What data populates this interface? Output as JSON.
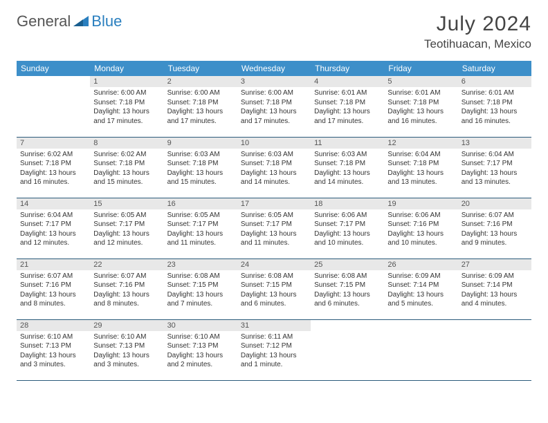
{
  "brand": {
    "part1": "General",
    "part2": "Blue"
  },
  "title": "July 2024",
  "location": "Teotihuacan, Mexico",
  "colors": {
    "header_bg": "#3d8fc9",
    "header_text": "#ffffff",
    "daynum_bg": "#e8e8e8",
    "cell_border": "#2a5a7a",
    "brand_blue": "#2a7fbf",
    "brand_gray": "#555555",
    "page_bg": "#ffffff",
    "text": "#333333"
  },
  "typography": {
    "title_fontsize": 30,
    "location_fontsize": 17,
    "weekday_fontsize": 12,
    "daynum_fontsize": 11,
    "cell_fontsize": 10
  },
  "weekdays": [
    "Sunday",
    "Monday",
    "Tuesday",
    "Wednesday",
    "Thursday",
    "Friday",
    "Saturday"
  ],
  "weeks": [
    [
      {
        "day": "",
        "sunrise": "",
        "sunset": "",
        "daylight1": "",
        "daylight2": ""
      },
      {
        "day": "1",
        "sunrise": "Sunrise: 6:00 AM",
        "sunset": "Sunset: 7:18 PM",
        "daylight1": "Daylight: 13 hours",
        "daylight2": "and 17 minutes."
      },
      {
        "day": "2",
        "sunrise": "Sunrise: 6:00 AM",
        "sunset": "Sunset: 7:18 PM",
        "daylight1": "Daylight: 13 hours",
        "daylight2": "and 17 minutes."
      },
      {
        "day": "3",
        "sunrise": "Sunrise: 6:00 AM",
        "sunset": "Sunset: 7:18 PM",
        "daylight1": "Daylight: 13 hours",
        "daylight2": "and 17 minutes."
      },
      {
        "day": "4",
        "sunrise": "Sunrise: 6:01 AM",
        "sunset": "Sunset: 7:18 PM",
        "daylight1": "Daylight: 13 hours",
        "daylight2": "and 17 minutes."
      },
      {
        "day": "5",
        "sunrise": "Sunrise: 6:01 AM",
        "sunset": "Sunset: 7:18 PM",
        "daylight1": "Daylight: 13 hours",
        "daylight2": "and 16 minutes."
      },
      {
        "day": "6",
        "sunrise": "Sunrise: 6:01 AM",
        "sunset": "Sunset: 7:18 PM",
        "daylight1": "Daylight: 13 hours",
        "daylight2": "and 16 minutes."
      }
    ],
    [
      {
        "day": "7",
        "sunrise": "Sunrise: 6:02 AM",
        "sunset": "Sunset: 7:18 PM",
        "daylight1": "Daylight: 13 hours",
        "daylight2": "and 16 minutes."
      },
      {
        "day": "8",
        "sunrise": "Sunrise: 6:02 AM",
        "sunset": "Sunset: 7:18 PM",
        "daylight1": "Daylight: 13 hours",
        "daylight2": "and 15 minutes."
      },
      {
        "day": "9",
        "sunrise": "Sunrise: 6:03 AM",
        "sunset": "Sunset: 7:18 PM",
        "daylight1": "Daylight: 13 hours",
        "daylight2": "and 15 minutes."
      },
      {
        "day": "10",
        "sunrise": "Sunrise: 6:03 AM",
        "sunset": "Sunset: 7:18 PM",
        "daylight1": "Daylight: 13 hours",
        "daylight2": "and 14 minutes."
      },
      {
        "day": "11",
        "sunrise": "Sunrise: 6:03 AM",
        "sunset": "Sunset: 7:18 PM",
        "daylight1": "Daylight: 13 hours",
        "daylight2": "and 14 minutes."
      },
      {
        "day": "12",
        "sunrise": "Sunrise: 6:04 AM",
        "sunset": "Sunset: 7:18 PM",
        "daylight1": "Daylight: 13 hours",
        "daylight2": "and 13 minutes."
      },
      {
        "day": "13",
        "sunrise": "Sunrise: 6:04 AM",
        "sunset": "Sunset: 7:17 PM",
        "daylight1": "Daylight: 13 hours",
        "daylight2": "and 13 minutes."
      }
    ],
    [
      {
        "day": "14",
        "sunrise": "Sunrise: 6:04 AM",
        "sunset": "Sunset: 7:17 PM",
        "daylight1": "Daylight: 13 hours",
        "daylight2": "and 12 minutes."
      },
      {
        "day": "15",
        "sunrise": "Sunrise: 6:05 AM",
        "sunset": "Sunset: 7:17 PM",
        "daylight1": "Daylight: 13 hours",
        "daylight2": "and 12 minutes."
      },
      {
        "day": "16",
        "sunrise": "Sunrise: 6:05 AM",
        "sunset": "Sunset: 7:17 PM",
        "daylight1": "Daylight: 13 hours",
        "daylight2": "and 11 minutes."
      },
      {
        "day": "17",
        "sunrise": "Sunrise: 6:05 AM",
        "sunset": "Sunset: 7:17 PM",
        "daylight1": "Daylight: 13 hours",
        "daylight2": "and 11 minutes."
      },
      {
        "day": "18",
        "sunrise": "Sunrise: 6:06 AM",
        "sunset": "Sunset: 7:17 PM",
        "daylight1": "Daylight: 13 hours",
        "daylight2": "and 10 minutes."
      },
      {
        "day": "19",
        "sunrise": "Sunrise: 6:06 AM",
        "sunset": "Sunset: 7:16 PM",
        "daylight1": "Daylight: 13 hours",
        "daylight2": "and 10 minutes."
      },
      {
        "day": "20",
        "sunrise": "Sunrise: 6:07 AM",
        "sunset": "Sunset: 7:16 PM",
        "daylight1": "Daylight: 13 hours",
        "daylight2": "and 9 minutes."
      }
    ],
    [
      {
        "day": "21",
        "sunrise": "Sunrise: 6:07 AM",
        "sunset": "Sunset: 7:16 PM",
        "daylight1": "Daylight: 13 hours",
        "daylight2": "and 8 minutes."
      },
      {
        "day": "22",
        "sunrise": "Sunrise: 6:07 AM",
        "sunset": "Sunset: 7:16 PM",
        "daylight1": "Daylight: 13 hours",
        "daylight2": "and 8 minutes."
      },
      {
        "day": "23",
        "sunrise": "Sunrise: 6:08 AM",
        "sunset": "Sunset: 7:15 PM",
        "daylight1": "Daylight: 13 hours",
        "daylight2": "and 7 minutes."
      },
      {
        "day": "24",
        "sunrise": "Sunrise: 6:08 AM",
        "sunset": "Sunset: 7:15 PM",
        "daylight1": "Daylight: 13 hours",
        "daylight2": "and 6 minutes."
      },
      {
        "day": "25",
        "sunrise": "Sunrise: 6:08 AM",
        "sunset": "Sunset: 7:15 PM",
        "daylight1": "Daylight: 13 hours",
        "daylight2": "and 6 minutes."
      },
      {
        "day": "26",
        "sunrise": "Sunrise: 6:09 AM",
        "sunset": "Sunset: 7:14 PM",
        "daylight1": "Daylight: 13 hours",
        "daylight2": "and 5 minutes."
      },
      {
        "day": "27",
        "sunrise": "Sunrise: 6:09 AM",
        "sunset": "Sunset: 7:14 PM",
        "daylight1": "Daylight: 13 hours",
        "daylight2": "and 4 minutes."
      }
    ],
    [
      {
        "day": "28",
        "sunrise": "Sunrise: 6:10 AM",
        "sunset": "Sunset: 7:13 PM",
        "daylight1": "Daylight: 13 hours",
        "daylight2": "and 3 minutes."
      },
      {
        "day": "29",
        "sunrise": "Sunrise: 6:10 AM",
        "sunset": "Sunset: 7:13 PM",
        "daylight1": "Daylight: 13 hours",
        "daylight2": "and 3 minutes."
      },
      {
        "day": "30",
        "sunrise": "Sunrise: 6:10 AM",
        "sunset": "Sunset: 7:13 PM",
        "daylight1": "Daylight: 13 hours",
        "daylight2": "and 2 minutes."
      },
      {
        "day": "31",
        "sunrise": "Sunrise: 6:11 AM",
        "sunset": "Sunset: 7:12 PM",
        "daylight1": "Daylight: 13 hours",
        "daylight2": "and 1 minute."
      },
      {
        "day": "",
        "sunrise": "",
        "sunset": "",
        "daylight1": "",
        "daylight2": ""
      },
      {
        "day": "",
        "sunrise": "",
        "sunset": "",
        "daylight1": "",
        "daylight2": ""
      },
      {
        "day": "",
        "sunrise": "",
        "sunset": "",
        "daylight1": "",
        "daylight2": ""
      }
    ]
  ]
}
